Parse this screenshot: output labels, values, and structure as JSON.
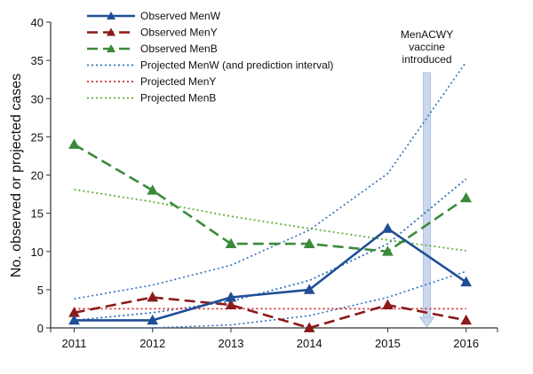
{
  "chart_data": {
    "type": "line",
    "title": "",
    "xlabel": "",
    "ylabel": "No. observed or projected cases",
    "x": [
      2011,
      2012,
      2013,
      2014,
      2015,
      2016
    ],
    "xticks": [
      "2011",
      "2012",
      "2013",
      "2014",
      "2015",
      "2016"
    ],
    "ylim": [
      0,
      40
    ],
    "yticks": [
      0,
      5,
      10,
      15,
      20,
      25,
      30,
      35,
      40
    ],
    "grid": false,
    "legend_position": "top-left",
    "series": [
      {
        "name": "Observed MenW",
        "style": "solid",
        "marker": "triangle",
        "color": "#1F4E96",
        "values": [
          1,
          1,
          4,
          5,
          13,
          6
        ]
      },
      {
        "name": "Observed MenY",
        "style": "dashed",
        "marker": "triangle",
        "color": "#8B1A1A",
        "values": [
          2,
          4,
          3,
          0,
          3,
          1
        ]
      },
      {
        "name": "Observed MenB",
        "style": "dashed",
        "marker": "triangle",
        "color": "#3A8A3A",
        "values": [
          24,
          18,
          11,
          11,
          10,
          17
        ]
      },
      {
        "name": "Projected MenW (and prediction interval)",
        "style": "dotted",
        "color": "#2E6FB7",
        "values": [
          1,
          2,
          3.5,
          6.2,
          11,
          19.5
        ],
        "interval_upper": [
          3.8,
          5.6,
          8.2,
          12.8,
          20.2,
          34.8
        ],
        "interval_lower": [
          0,
          0,
          0.4,
          1.6,
          4,
          7.4
        ]
      },
      {
        "name": "Projected MenY",
        "style": "dotted",
        "color": "#D22B2B",
        "values": [
          2.5,
          2.5,
          2.5,
          2.5,
          2.5,
          2.5
        ]
      },
      {
        "name": "Projected MenB",
        "style": "dotted",
        "color": "#5FAE3C",
        "values": [
          18.1,
          16.5,
          14.6,
          13,
          11.5,
          10.1
        ]
      }
    ],
    "annotation": {
      "text_lines": [
        "MenACWY",
        "vaccine",
        "introduced"
      ],
      "x": 2015.5
    }
  }
}
